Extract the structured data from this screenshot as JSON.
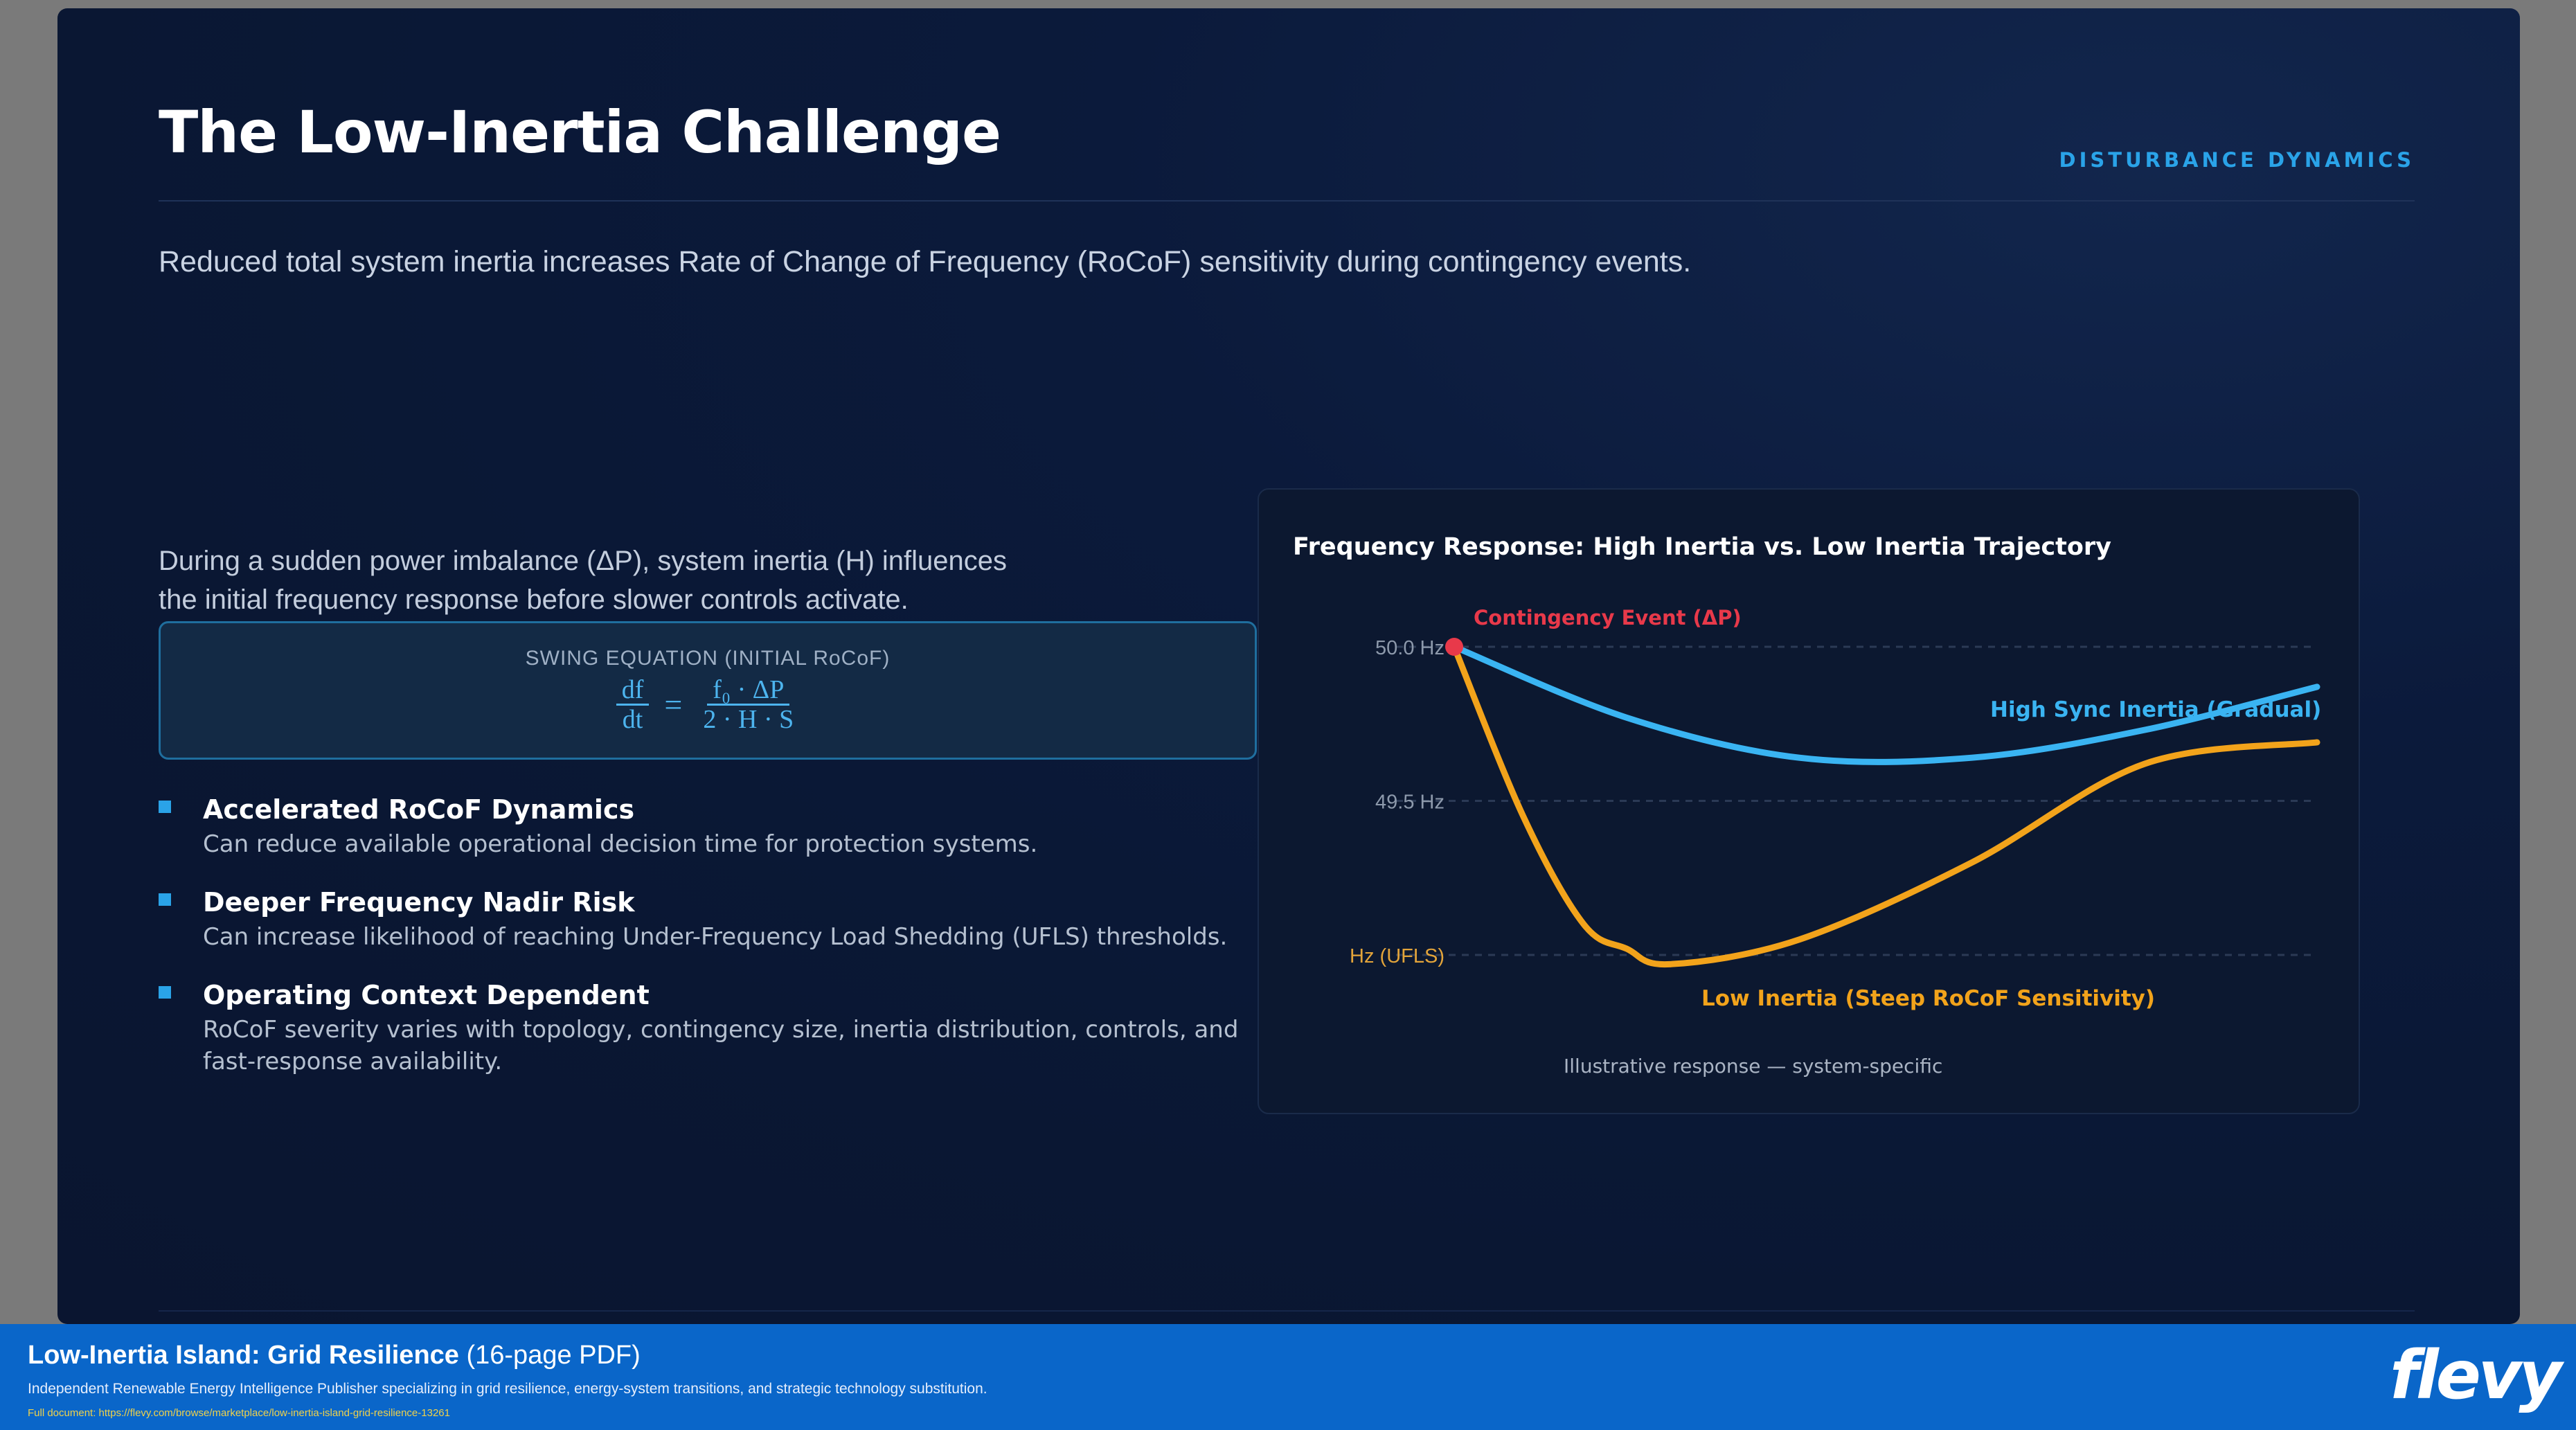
{
  "slide": {
    "title": "The Low-Inertia Challenge",
    "kicker": "DISTURBANCE DYNAMICS",
    "subtitle": "Reduced total system inertia increases Rate of Change of Frequency (RoCoF) sensitivity during contingency events.",
    "intro_line1": "During a sudden power imbalance (ΔP), system inertia (H) influences",
    "intro_line2": "the initial frequency response before slower controls activate.",
    "equation": {
      "label": "SWING EQUATION (INITIAL RoCoF)",
      "lhs_num": "df",
      "lhs_den": "dt",
      "op": "=",
      "rhs_num": "f₀ · ΔP",
      "rhs_den": "2 · H · S"
    },
    "bullets": [
      {
        "title": "Accelerated RoCoF Dynamics",
        "desc": "Can reduce available operational decision time for protection systems."
      },
      {
        "title": "Deeper Frequency Nadir Risk",
        "desc": "Can increase likelihood of reaching Under-Frequency Load Shedding (UFLS) thresholds."
      },
      {
        "title": "Operating Context Dependent",
        "desc": "RoCoF severity varies with topology, contingency size, inertia distribution, controls, and fast-response availability."
      }
    ]
  },
  "chart_data": {
    "type": "line",
    "title": "Frequency Response: High Inertia vs. Low Inertia Trajectory",
    "y_ticks": [
      "50.0 Hz",
      "49.5 Hz",
      "Hz (UFLS)"
    ],
    "y_values": [
      50.0,
      49.5,
      49.0
    ],
    "ylim": [
      48.7,
      50.1
    ],
    "event_label": "Contingency Event (ΔP)",
    "caption": "Illustrative response — system-specific",
    "grid": true,
    "colors": {
      "high": "#3ab4f2",
      "low": "#f2a31b",
      "event": "#e8394a"
    },
    "series": [
      {
        "name": "High Sync Inertia (Gradual)",
        "x": [
          0,
          0.2,
          0.4,
          0.6,
          0.8,
          1.0
        ],
        "y": [
          50.0,
          49.77,
          49.64,
          49.64,
          49.73,
          49.87
        ]
      },
      {
        "name": "Low Inertia (Steep RoCoF Sensitivity)",
        "x": [
          0,
          0.08,
          0.15,
          0.2,
          0.25,
          0.4,
          0.6,
          0.8,
          1.0
        ],
        "y": [
          50.0,
          49.45,
          49.1,
          49.02,
          48.97,
          49.05,
          49.3,
          49.62,
          49.69
        ]
      }
    ]
  },
  "footer": {
    "title_bold": "Low-Inertia Island: Grid Resilience",
    "title_rest": " (16-page PDF)",
    "desc": "Independent Renewable Energy Intelligence Publisher specializing in grid resilience, energy-system transitions, and strategic technology substitution.",
    "url": "Full document: https://flevy.com/browse/marketplace/low-inertia-island-grid-resilience-13261",
    "logo": "flevy"
  }
}
